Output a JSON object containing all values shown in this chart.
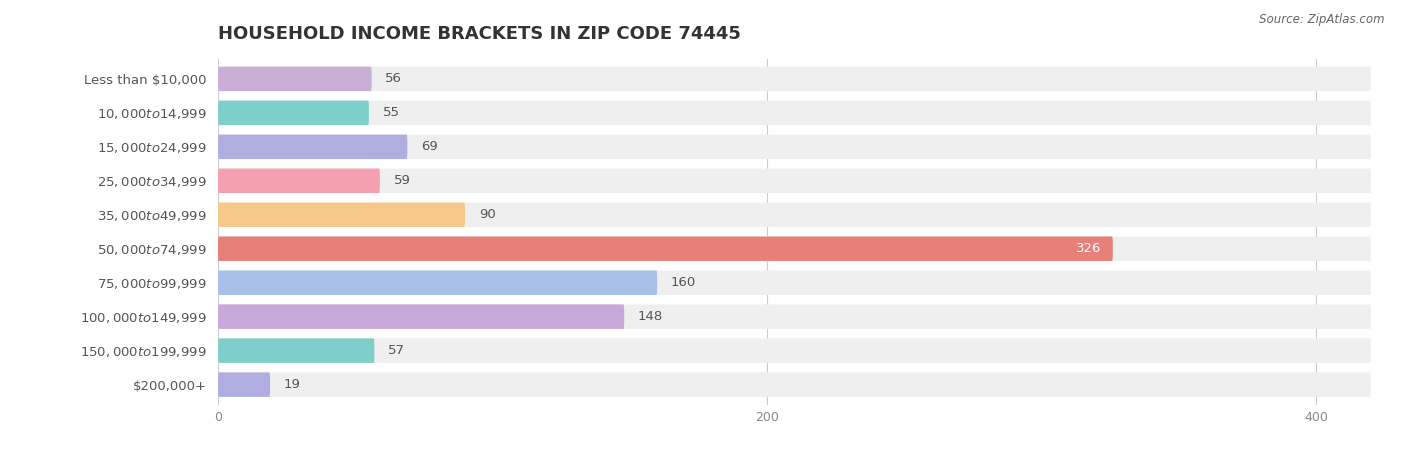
{
  "title": "HOUSEHOLD INCOME BRACKETS IN ZIP CODE 74445",
  "source": "Source: ZipAtlas.com",
  "categories": [
    "Less than $10,000",
    "$10,000 to $14,999",
    "$15,000 to $24,999",
    "$25,000 to $34,999",
    "$35,000 to $49,999",
    "$50,000 to $74,999",
    "$75,000 to $99,999",
    "$100,000 to $149,999",
    "$150,000 to $199,999",
    "$200,000+"
  ],
  "values": [
    56,
    55,
    69,
    59,
    90,
    326,
    160,
    148,
    57,
    19
  ],
  "bar_colors": [
    "#c9aed6",
    "#7ececa",
    "#b0aee0",
    "#f5a0b0",
    "#f5c98a",
    "#e8807a",
    "#a8bfe8",
    "#c8a8d8",
    "#7ececa",
    "#b0aee0"
  ],
  "bg_color": "#ffffff",
  "bar_bg_color": "#efefef",
  "data_max": 420,
  "xticks": [
    0,
    200,
    400
  ],
  "title_fontsize": 13,
  "label_fontsize": 9.5,
  "value_fontsize": 9.5,
  "bar_height": 0.72,
  "bar_gap": 0.18
}
